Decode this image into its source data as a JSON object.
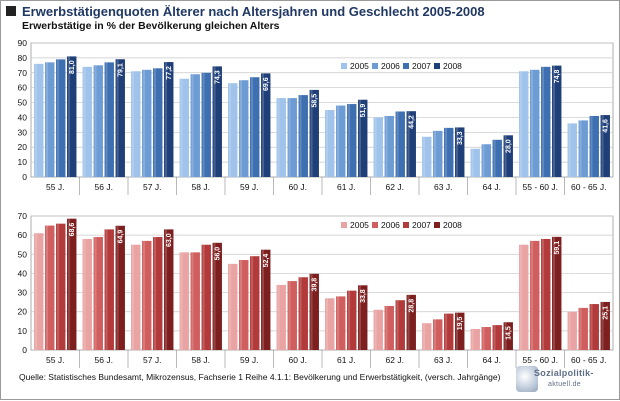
{
  "header": {
    "title": "Erwerbstätigenquoten Älterer  nach Altersjahren und Geschlecht  2005-2008",
    "subtitle": "Erwerbstätige in % der Bevölkerung gleichen Alters"
  },
  "source": "Quelle: Statistisches Bundesamt, Mikrozensus, Fachserie 1 Reihe 4.1.1: Bevölkerung und Erwerbstätigkeit,  (versch. Jahrgänge)",
  "logo": {
    "text": "Sozialpolitik-",
    "sub": "aktuell.de"
  },
  "chart_data": [
    {
      "type": "bar",
      "categories": [
        "55 J.",
        "56 J.",
        "57 J.",
        "58 J.",
        "59 J.",
        "60 J.",
        "61 J.",
        "62 J.",
        "63 J.",
        "64 J.",
        "55 - 60 J.",
        "60 - 65 J."
      ],
      "ylim": [
        0,
        90
      ],
      "yticks": [
        0,
        10,
        20,
        30,
        40,
        50,
        60,
        70,
        80,
        90
      ],
      "grid": true,
      "legend": "top-right",
      "colors": [
        "#9fc3ea",
        "#6d9bd4",
        "#3e6fb1",
        "#1f3f78"
      ],
      "series": [
        {
          "name": "2005",
          "values": [
            76,
            74,
            71,
            66,
            63,
            53,
            45,
            40,
            27,
            19,
            71,
            36
          ]
        },
        {
          "name": "2006",
          "values": [
            77,
            75,
            72,
            69,
            65,
            53,
            48,
            41,
            31,
            22,
            72,
            38
          ]
        },
        {
          "name": "2007",
          "values": [
            79,
            77,
            73,
            70,
            67,
            55,
            49,
            44,
            33,
            25,
            74,
            41
          ]
        },
        {
          "name": "2008",
          "values": [
            81.0,
            79.1,
            77.2,
            74.3,
            69.6,
            58.5,
            51.9,
            44.2,
            33.3,
            28.0,
            74.8,
            41.6
          ]
        }
      ],
      "labels": [
        "81,0",
        "79,1",
        "77,2",
        "74,3",
        "69,6",
        "58,5",
        "51,9",
        "44,2",
        "33,3",
        "28,0",
        "74,8",
        "41,6"
      ]
    },
    {
      "type": "bar",
      "categories": [
        "55 J.",
        "56 J.",
        "57 J.",
        "58 J.",
        "59 J.",
        "60 J.",
        "61 J.",
        "62 J.",
        "63 J.",
        "64 J.",
        "55 - 60 J.",
        "60 - 65 J."
      ],
      "ylim": [
        0,
        70
      ],
      "yticks": [
        0,
        10,
        20,
        30,
        40,
        50,
        60,
        70
      ],
      "grid": true,
      "legend": "top-right",
      "colors": [
        "#e9a3a3",
        "#d05e5e",
        "#b33a3a",
        "#7e1f1f"
      ],
      "series": [
        {
          "name": "2005",
          "values": [
            61,
            58,
            55,
            51,
            45,
            34,
            27,
            21,
            14,
            11,
            55,
            20
          ]
        },
        {
          "name": "2006",
          "values": [
            65,
            59,
            57,
            51,
            47,
            36,
            28,
            23,
            16,
            12,
            57,
            22
          ]
        },
        {
          "name": "2007",
          "values": [
            66,
            63,
            59,
            55,
            49,
            38,
            31,
            26,
            19,
            13,
            58,
            24
          ]
        },
        {
          "name": "2008",
          "values": [
            68.6,
            64.9,
            63.0,
            56.0,
            52.4,
            39.8,
            33.8,
            28.8,
            19.5,
            14.5,
            59.1,
            25.1
          ]
        }
      ],
      "labels": [
        "68,6",
        "64,9",
        "63,0",
        "56,0",
        "52,4",
        "39,8",
        "33,8",
        "28,8",
        "19,5",
        "14,5",
        "59,1",
        "25,1"
      ]
    }
  ]
}
